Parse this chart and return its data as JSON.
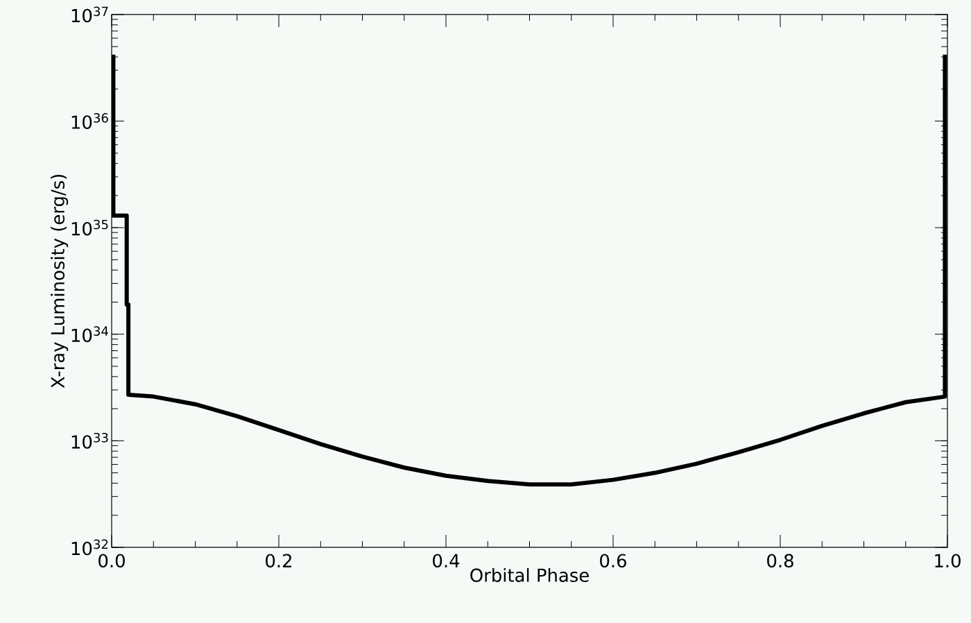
{
  "chart_data": {
    "type": "line",
    "xlabel": "Orbital Phase",
    "ylabel": "X-ray Luminosity (erg/s)",
    "log": "y",
    "color": "#000000",
    "x": [
      0.002,
      0.002,
      0.018,
      0.018,
      0.02,
      0.02,
      0.05,
      0.1,
      0.15,
      0.2,
      0.25,
      0.3,
      0.35,
      0.4,
      0.45,
      0.5,
      0.55,
      0.6,
      0.65,
      0.7,
      0.75,
      0.8,
      0.85,
      0.9,
      0.95,
      0.99,
      0.997,
      0.997
    ],
    "values": [
      4.2e+36,
      1.3e+35,
      1.3e+35,
      1.9e+34,
      1.9e+34,
      2.7e+33,
      2.6e+33,
      2.2e+33,
      1.7e+33,
      1.26e+33,
      9.3e+32,
      7.1e+32,
      5.6e+32,
      4.7e+32,
      4.2e+32,
      3.9e+32,
      3.9e+32,
      4.3e+32,
      5e+32,
      6.1e+32,
      7.8e+32,
      1.02e+33,
      1.38e+33,
      1.81e+33,
      2.3e+33,
      2.55e+33,
      2.6e+33,
      4.2e+36
    ],
    "xlim": [
      0,
      1
    ],
    "xticks": [
      {
        "value": 0,
        "label": "0.0"
      },
      {
        "value": 0.2,
        "label": "0.2"
      },
      {
        "value": 0.4,
        "label": "0.4"
      },
      {
        "value": 0.6,
        "label": "0.6"
      },
      {
        "value": 0.8,
        "label": "0.8"
      },
      {
        "value": 1,
        "label": "1.0"
      }
    ],
    "ylim": [
      1e+32,
      1e+37
    ],
    "yticks": [
      {
        "value": 1e+32,
        "label": "10$^{32}$"
      },
      {
        "value": 1e+33,
        "label": "10$^{33}$"
      },
      {
        "value": 1e+34,
        "label": "10$^{34}$"
      },
      {
        "value": 1e+35,
        "label": "10$^{35}$"
      },
      {
        "value": 1e+36,
        "label": "10$^{36}$"
      },
      {
        "value": 1e+37,
        "label": "10$^{37}$"
      }
    ]
  }
}
